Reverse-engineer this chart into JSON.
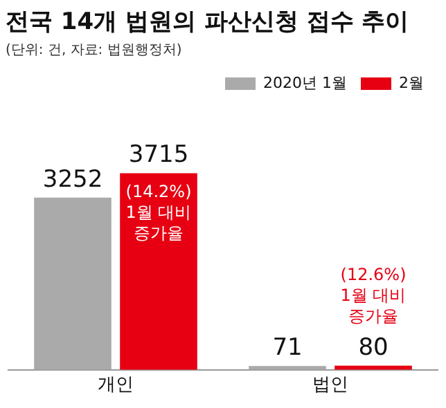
{
  "chart_data": {
    "type": "bar",
    "title": "전국 14개 법원의 파산신청 접수 추이",
    "subtitle": "(단위: 건, 자료: 법원행정처)",
    "categories": [
      "개인",
      "법인"
    ],
    "series": [
      {
        "name": "2020년 1월",
        "color": "#aaaaaa",
        "values": [
          3252,
          71
        ]
      },
      {
        "name": "2월",
        "color": "#e60012",
        "values": [
          3715,
          80
        ]
      }
    ],
    "data_labels": true,
    "legend": "top right",
    "grid": false,
    "annotations": [
      {
        "text": "(14.2%)\n1월 대비\n증가율",
        "x": "개인",
        "y": 3715
      },
      {
        "text": "(12.6%)\n1월 대비\n증가율",
        "x": "법인",
        "y": 80
      }
    ]
  }
}
